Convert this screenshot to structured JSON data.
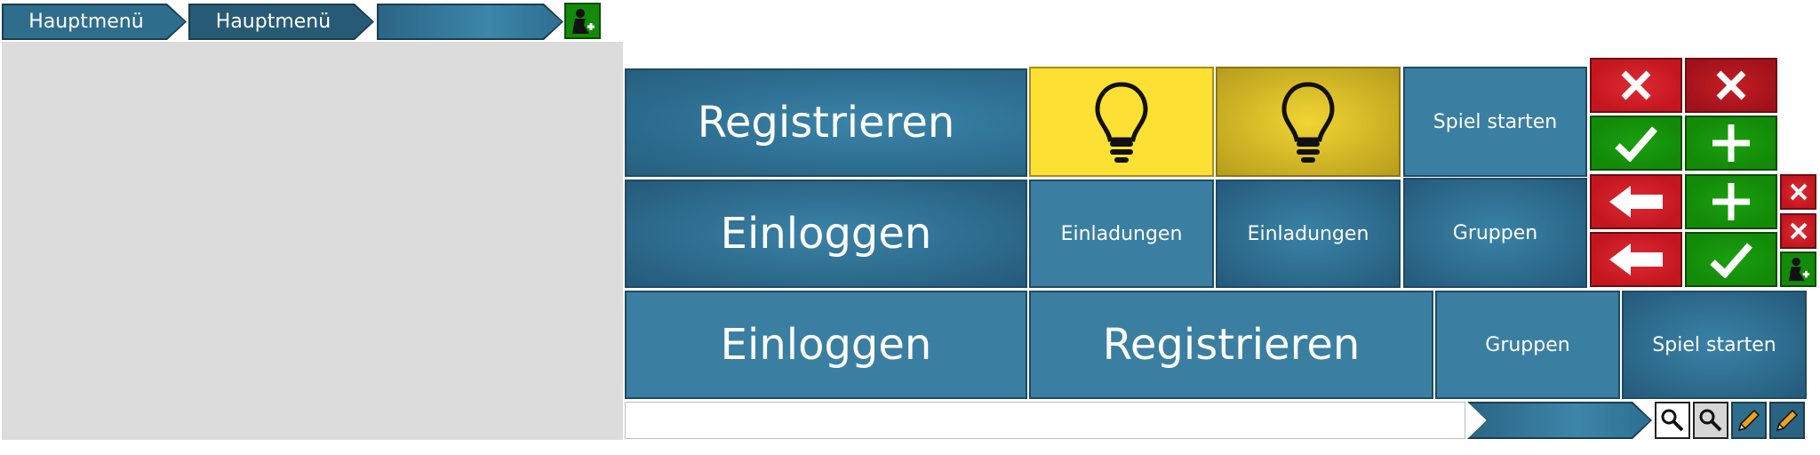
{
  "breadcrumbs": [
    {
      "label": "Hauptmenü"
    },
    {
      "label": "Hauptmenü"
    },
    {
      "label": ""
    }
  ],
  "tiles": {
    "register_1": "Registrieren",
    "start_game_1": "Spiel starten",
    "login_1": "Einloggen",
    "invitations_1": "Einladungen",
    "invitations_2": "Einladungen",
    "groups_1": "Gruppen",
    "login_2": "Einloggen",
    "register_2": "Registrieren",
    "groups_2": "Gruppen",
    "start_game_2": "Spiel starten"
  },
  "search": {
    "value": ""
  },
  "colors": {
    "tile_blue": "#3a7fa2",
    "tile_dark": "#1f4a61",
    "yellow": "#fde034",
    "red": "#c4161f",
    "green": "#138a08",
    "panel_grey": "#dcdcdc"
  },
  "icons": {
    "add_user": "add-user-icon",
    "bulb": "lightbulb-icon",
    "close": "close-icon",
    "check": "check-icon",
    "plus": "plus-icon",
    "back": "arrow-left-icon",
    "search": "search-icon",
    "edit": "pencil-icon"
  }
}
